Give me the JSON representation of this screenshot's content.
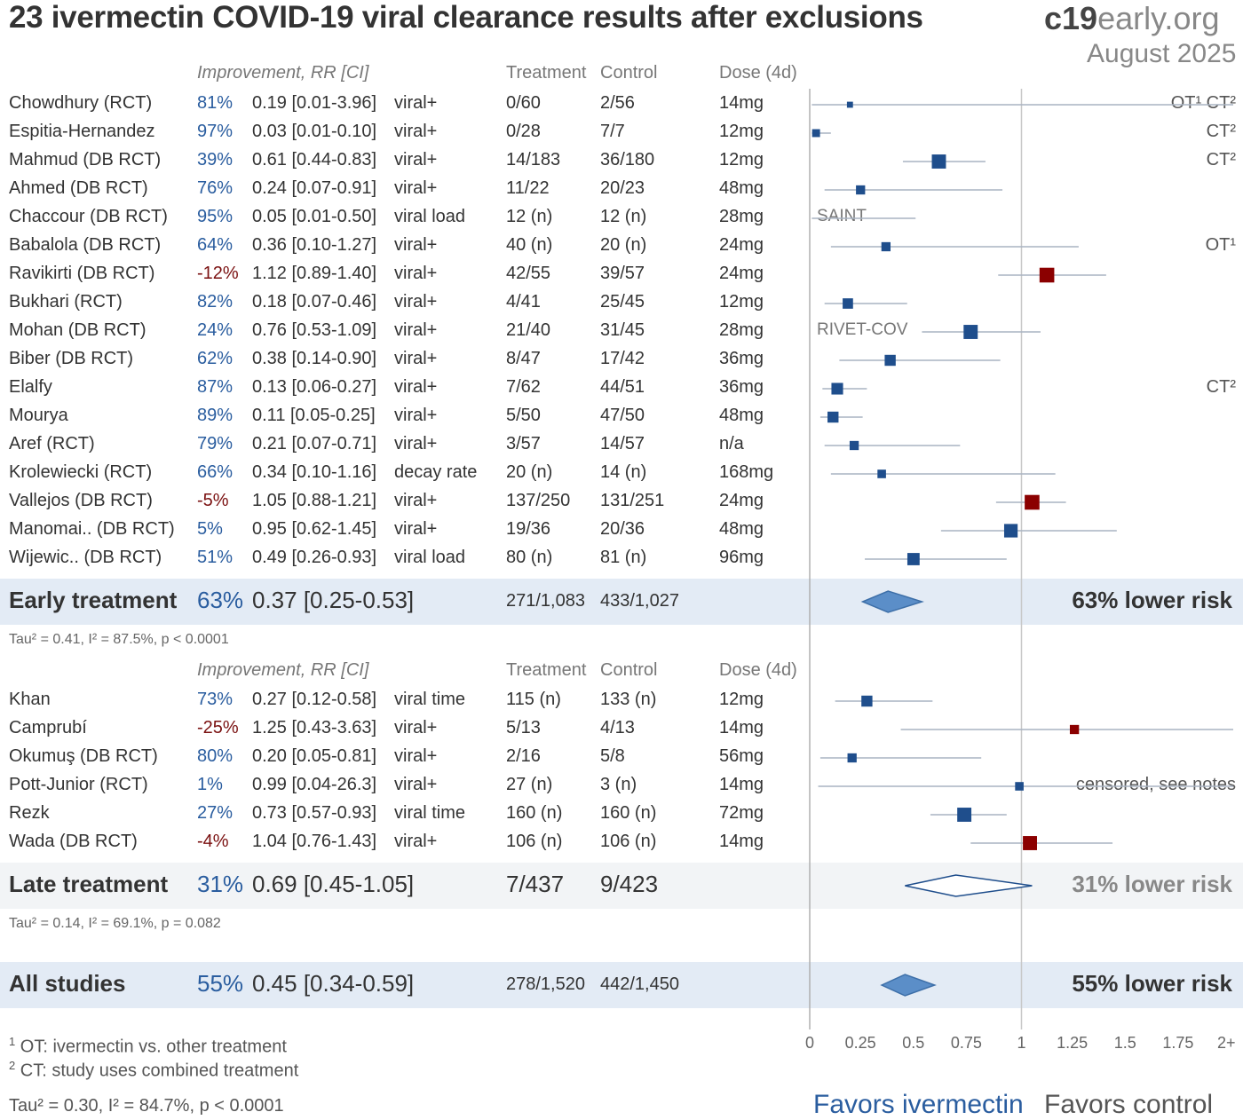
{
  "title": "23 ivermectin COVID-19 viral clearance results after exclusions",
  "brand": {
    "part1": "c19",
    "part2": "early.org"
  },
  "date": "August 2025",
  "headers": {
    "improvement": "Improvement, RR [CI]",
    "treatment": "Treatment",
    "control": "Control",
    "dose": "Dose (4d)"
  },
  "colors": {
    "favor": "#1f4e8c",
    "against": "#8b0000",
    "band": "#e3ebf5",
    "diamond": "#5b8ec8"
  },
  "chart_data": {
    "type": "forest",
    "x_axis": {
      "ticks": [
        "0",
        "0.25",
        "0.5",
        "0.75",
        "1",
        "1.25",
        "1.5",
        "1.75",
        "2+"
      ],
      "range": [
        0,
        2
      ],
      "reference": 1
    },
    "groups": [
      {
        "name": "Early treatment",
        "studies": [
          {
            "name": "Chowdhury (RCT)",
            "improvement": "81%",
            "rr_text": "0.19 [0.01-3.96]",
            "outcome": "viral+",
            "treatment": "0/60",
            "control": "2/56",
            "dose": "14mg",
            "rr": 0.19,
            "lo": 0.01,
            "hi": 3.96,
            "weight": 0.2,
            "note": "OT¹ CT²"
          },
          {
            "name": "Espitia-Hernandez",
            "improvement": "97%",
            "rr_text": "0.03 [0.01-0.10]",
            "outcome": "viral+",
            "treatment": "0/28",
            "control": "7/7",
            "dose": "12mg",
            "rr": 0.03,
            "lo": 0.01,
            "hi": 0.1,
            "weight": 0.35,
            "note": "CT²"
          },
          {
            "name": "Mahmud (DB RCT)",
            "improvement": "39%",
            "rr_text": "0.61 [0.44-0.83]",
            "outcome": "viral+",
            "treatment": "14/183",
            "control": "36/180",
            "dose": "12mg",
            "rr": 0.61,
            "lo": 0.44,
            "hi": 0.83,
            "weight": 0.85,
            "note": "CT²"
          },
          {
            "name": "Ahmed (DB RCT)",
            "improvement": "76%",
            "rr_text": "0.24 [0.07-0.91]",
            "outcome": "viral+",
            "treatment": "11/22",
            "control": "20/23",
            "dose": "48mg",
            "rr": 0.24,
            "lo": 0.07,
            "hi": 0.91,
            "weight": 0.45,
            "note": ""
          },
          {
            "name": "Chaccour (DB RCT)",
            "improvement": "95%",
            "rr_text": "0.05 [0.01-0.50]",
            "outcome": "viral load",
            "treatment": "12 (n)",
            "control": "12 (n)",
            "dose": "28mg",
            "rr": 0.05,
            "lo": 0.01,
            "hi": 0.5,
            "weight": 0.0,
            "note": "",
            "label": "SAINT"
          },
          {
            "name": "Babalola (DB RCT)",
            "improvement": "64%",
            "rr_text": "0.36 [0.10-1.27]",
            "outcome": "viral+",
            "treatment": "40 (n)",
            "control": "20 (n)",
            "dose": "24mg",
            "rr": 0.36,
            "lo": 0.1,
            "hi": 1.27,
            "weight": 0.45,
            "note": "OT¹"
          },
          {
            "name": "Ravikirti (DB RCT)",
            "improvement": "-12%",
            "rr_text": "1.12 [0.89-1.40]",
            "outcome": "viral+",
            "treatment": "42/55",
            "control": "39/57",
            "dose": "24mg",
            "rr": 1.12,
            "lo": 0.89,
            "hi": 1.4,
            "weight": 0.9,
            "note": ""
          },
          {
            "name": "Bukhari (RCT)",
            "improvement": "82%",
            "rr_text": "0.18 [0.07-0.46]",
            "outcome": "viral+",
            "treatment": "4/41",
            "control": "25/45",
            "dose": "12mg",
            "rr": 0.18,
            "lo": 0.07,
            "hi": 0.46,
            "weight": 0.55,
            "note": ""
          },
          {
            "name": "Mohan (DB RCT)",
            "improvement": "24%",
            "rr_text": "0.76 [0.53-1.09]",
            "outcome": "viral+",
            "treatment": "21/40",
            "control": "31/45",
            "dose": "28mg",
            "rr": 0.76,
            "lo": 0.53,
            "hi": 1.09,
            "weight": 0.85,
            "note": "",
            "label": "RIVET-COV"
          },
          {
            "name": "Biber (DB RCT)",
            "improvement": "62%",
            "rr_text": "0.38 [0.14-0.90]",
            "outcome": "viral+",
            "treatment": "8/47",
            "control": "17/42",
            "dose": "36mg",
            "rr": 0.38,
            "lo": 0.14,
            "hi": 0.9,
            "weight": 0.6,
            "note": ""
          },
          {
            "name": "Elalfy",
            "improvement": "87%",
            "rr_text": "0.13 [0.06-0.27]",
            "outcome": "viral+",
            "treatment": "7/62",
            "control": "44/51",
            "dose": "36mg",
            "rr": 0.13,
            "lo": 0.06,
            "hi": 0.27,
            "weight": 0.65,
            "note": "CT²"
          },
          {
            "name": "Mourya",
            "improvement": "89%",
            "rr_text": "0.11 [0.05-0.25]",
            "outcome": "viral+",
            "treatment": "5/50",
            "control": "47/50",
            "dose": "48mg",
            "rr": 0.11,
            "lo": 0.05,
            "hi": 0.25,
            "weight": 0.6,
            "note": ""
          },
          {
            "name": "Aref (RCT)",
            "improvement": "79%",
            "rr_text": "0.21 [0.07-0.71]",
            "outcome": "viral+",
            "treatment": "3/57",
            "control": "14/57",
            "dose": "n/a",
            "rr": 0.21,
            "lo": 0.07,
            "hi": 0.71,
            "weight": 0.45,
            "note": ""
          },
          {
            "name": "Krolewiecki (RCT)",
            "improvement": "66%",
            "rr_text": "0.34 [0.10-1.16]",
            "outcome": "decay rate",
            "treatment": "20 (n)",
            "control": "14 (n)",
            "dose": "168mg",
            "rr": 0.34,
            "lo": 0.1,
            "hi": 1.16,
            "weight": 0.4,
            "note": ""
          },
          {
            "name": "Vallejos (DB RCT)",
            "improvement": "-5%",
            "rr_text": "1.05 [0.88-1.21]",
            "outcome": "viral+",
            "treatment": "137/250",
            "control": "131/251",
            "dose": "24mg",
            "rr": 1.05,
            "lo": 0.88,
            "hi": 1.21,
            "weight": 0.9,
            "note": ""
          },
          {
            "name": "Manomai.. (DB RCT)",
            "improvement": "5%",
            "rr_text": "0.95 [0.62-1.45]",
            "outcome": "viral+",
            "treatment": "19/36",
            "control": "20/36",
            "dose": "48mg",
            "rr": 0.95,
            "lo": 0.62,
            "hi": 1.45,
            "weight": 0.8,
            "note": ""
          },
          {
            "name": "Wijewic.. (DB RCT)",
            "improvement": "51%",
            "rr_text": "0.49 [0.26-0.93]",
            "outcome": "viral load",
            "treatment": "80 (n)",
            "control": "81 (n)",
            "dose": "96mg",
            "rr": 0.49,
            "lo": 0.26,
            "hi": 0.93,
            "weight": 0.7,
            "note": ""
          }
        ],
        "summary": {
          "name": "Early treatment",
          "improvement": "63%",
          "rr_text": "0.37 [0.25-0.53]",
          "treatment": "271/1,083",
          "control": "433/1,027",
          "rr": 0.37,
          "lo": 0.25,
          "hi": 0.53,
          "risk": "63% lower risk",
          "het": "Tau² = 0.41, I² = 87.5%, p < 0.0001"
        }
      },
      {
        "name": "Late treatment",
        "studies": [
          {
            "name": "Khan",
            "improvement": "73%",
            "rr_text": "0.27 [0.12-0.58]",
            "outcome": "viral time",
            "treatment": "115 (n)",
            "control": "133 (n)",
            "dose": "12mg",
            "rr": 0.27,
            "lo": 0.12,
            "hi": 0.58,
            "weight": 0.6,
            "note": ""
          },
          {
            "name": "Camprubí",
            "improvement": "-25%",
            "rr_text": "1.25 [0.43-3.63]",
            "outcome": "viral+",
            "treatment": "5/13",
            "control": "4/13",
            "dose": "14mg",
            "rr": 1.25,
            "lo": 0.43,
            "hi": 3.63,
            "weight": 0.45,
            "note": ""
          },
          {
            "name": "Okumuş (DB RCT)",
            "improvement": "80%",
            "rr_text": "0.20 [0.05-0.81]",
            "outcome": "viral+",
            "treatment": "2/16",
            "control": "5/8",
            "dose": "56mg",
            "rr": 0.2,
            "lo": 0.05,
            "hi": 0.81,
            "weight": 0.45,
            "note": ""
          },
          {
            "name": "Pott-Junior (RCT)",
            "improvement": "1%",
            "rr_text": "0.99 [0.04-26.3]",
            "outcome": "viral+",
            "treatment": "27 (n)",
            "control": "3 (n)",
            "dose": "14mg",
            "rr": 0.99,
            "lo": 0.04,
            "hi": 26.3,
            "weight": 0.4,
            "note": "censored, see notes"
          },
          {
            "name": "Rezk",
            "improvement": "27%",
            "rr_text": "0.73 [0.57-0.93]",
            "outcome": "viral time",
            "treatment": "160 (n)",
            "control": "160 (n)",
            "dose": "72mg",
            "rr": 0.73,
            "lo": 0.57,
            "hi": 0.93,
            "weight": 0.85,
            "note": ""
          },
          {
            "name": "Wada (DB RCT)",
            "improvement": "-4%",
            "rr_text": "1.04 [0.76-1.43]",
            "outcome": "viral+",
            "treatment": "106 (n)",
            "control": "106 (n)",
            "dose": "14mg",
            "rr": 1.04,
            "lo": 0.76,
            "hi": 1.43,
            "weight": 0.85,
            "note": ""
          }
        ],
        "summary": {
          "name": "Late treatment",
          "improvement": "31%",
          "rr_text": "0.69 [0.45-1.05]",
          "treatment": "7/437",
          "control": "9/423",
          "rr": 0.69,
          "lo": 0.45,
          "hi": 1.05,
          "risk": "31% lower risk",
          "het": "Tau² = 0.14, I² = 69.1%, p = 0.082"
        }
      }
    ],
    "overall": {
      "name": "All studies",
      "improvement": "55%",
      "rr_text": "0.45 [0.34-0.59]",
      "treatment": "278/1,520",
      "control": "442/1,450",
      "rr": 0.45,
      "lo": 0.34,
      "hi": 0.59,
      "risk": "55% lower risk",
      "het": "Tau² = 0.30, I² = 84.7%, p < 0.0001"
    }
  },
  "footnotes": [
    "OT: ivermectin vs. other treatment",
    "CT: study uses combined treatment"
  ],
  "favors": {
    "left": "Favors ivermectin",
    "right": "Favors control"
  }
}
